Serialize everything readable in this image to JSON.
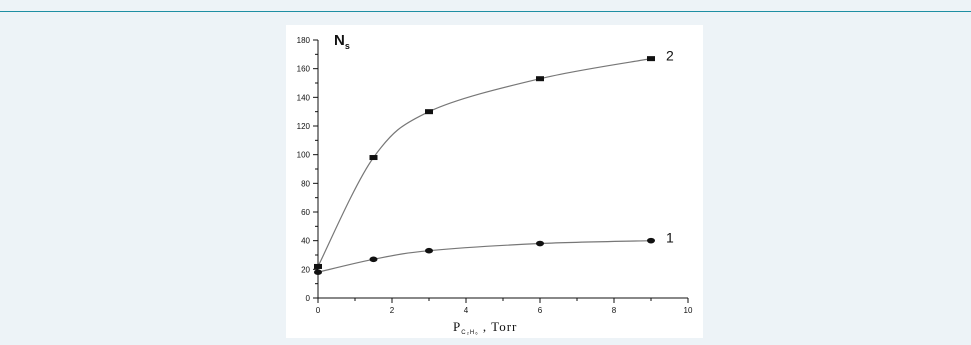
{
  "chart_data": {
    "type": "line",
    "ylabel": {
      "main": "N",
      "sub": "s"
    },
    "xlabel": {
      "main": "P",
      "sub": "C₂H₆",
      "suffix": " ,  Torr"
    },
    "xlim": [
      0,
      10
    ],
    "ylim": [
      0,
      180
    ],
    "xticks": [
      0,
      2,
      4,
      6,
      8,
      10
    ],
    "yticks": [
      0,
      20,
      40,
      60,
      80,
      100,
      120,
      140,
      160,
      180
    ],
    "grid": false,
    "series": [
      {
        "name": "1",
        "marker": "circle",
        "x": [
          0,
          1.5,
          3,
          6,
          9
        ],
        "y": [
          18,
          27,
          33,
          38,
          40
        ]
      },
      {
        "name": "2",
        "marker": "square",
        "x": [
          0,
          1.5,
          3,
          6,
          9
        ],
        "y": [
          22,
          98,
          130,
          153,
          167
        ]
      }
    ]
  },
  "colors": {
    "page_background": "#edf3f7",
    "top_rule": "#1e8fa3",
    "panel": "#ffffff",
    "curve": "#777777",
    "markers": "#111111",
    "axes": "#111111"
  }
}
